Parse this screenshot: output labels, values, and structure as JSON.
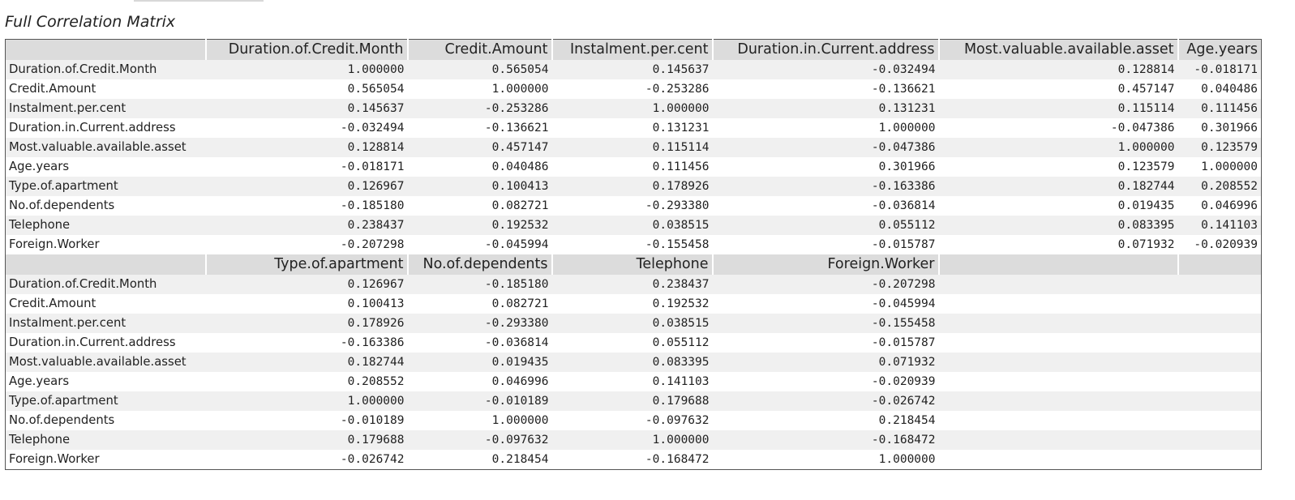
{
  "caption": "Full Correlation Matrix",
  "row_names": [
    "Duration.of.Credit.Month",
    "Credit.Amount",
    "Instalment.per.cent",
    "Duration.in.Current.address",
    "Most.valuable.available.asset",
    "Age.years",
    "Type.of.apartment",
    "No.of.dependents",
    "Telephone",
    "Foreign.Worker"
  ],
  "blocks": [
    {
      "columns": [
        "Duration.of.Credit.Month",
        "Credit.Amount",
        "Instalment.per.cent",
        "Duration.in.Current.address",
        "Most.valuable.available.asset",
        "Age.years"
      ],
      "rows": [
        [
          "1.000000",
          "0.565054",
          "0.145637",
          "-0.032494",
          "0.128814",
          "-0.018171"
        ],
        [
          "0.565054",
          "1.000000",
          "-0.253286",
          "-0.136621",
          "0.457147",
          "0.040486"
        ],
        [
          "0.145637",
          "-0.253286",
          "1.000000",
          "0.131231",
          "0.115114",
          "0.111456"
        ],
        [
          "-0.032494",
          "-0.136621",
          "0.131231",
          "1.000000",
          "-0.047386",
          "0.301966"
        ],
        [
          "0.128814",
          "0.457147",
          "0.115114",
          "-0.047386",
          "1.000000",
          "0.123579"
        ],
        [
          "-0.018171",
          "0.040486",
          "0.111456",
          "0.301966",
          "0.123579",
          "1.000000"
        ],
        [
          "0.126967",
          "0.100413",
          "0.178926",
          "-0.163386",
          "0.182744",
          "0.208552"
        ],
        [
          "-0.185180",
          "0.082721",
          "-0.293380",
          "-0.036814",
          "0.019435",
          "0.046996"
        ],
        [
          "0.238437",
          "0.192532",
          "0.038515",
          "0.055112",
          "0.083395",
          "0.141103"
        ],
        [
          "-0.207298",
          "-0.045994",
          "-0.155458",
          "-0.015787",
          "0.071932",
          "-0.020939"
        ]
      ]
    },
    {
      "columns": [
        "Type.of.apartment",
        "No.of.dependents",
        "Telephone",
        "Foreign.Worker",
        "",
        ""
      ],
      "rows": [
        [
          "0.126967",
          "-0.185180",
          "0.238437",
          "-0.207298",
          "",
          ""
        ],
        [
          "0.100413",
          "0.082721",
          "0.192532",
          "-0.045994",
          "",
          ""
        ],
        [
          "0.178926",
          "-0.293380",
          "0.038515",
          "-0.155458",
          "",
          ""
        ],
        [
          "-0.163386",
          "-0.036814",
          "0.055112",
          "-0.015787",
          "",
          ""
        ],
        [
          "0.182744",
          "0.019435",
          "0.083395",
          "0.071932",
          "",
          ""
        ],
        [
          "0.208552",
          "0.046996",
          "0.141103",
          "-0.020939",
          "",
          ""
        ],
        [
          "1.000000",
          "-0.010189",
          "0.179688",
          "-0.026742",
          "",
          ""
        ],
        [
          "-0.010189",
          "1.000000",
          "-0.097632",
          "0.218454",
          "",
          ""
        ],
        [
          "0.179688",
          "-0.097632",
          "1.000000",
          "-0.168472",
          "",
          ""
        ],
        [
          "-0.026742",
          "0.218454",
          "-0.168472",
          "1.000000",
          "",
          ""
        ]
      ]
    }
  ]
}
